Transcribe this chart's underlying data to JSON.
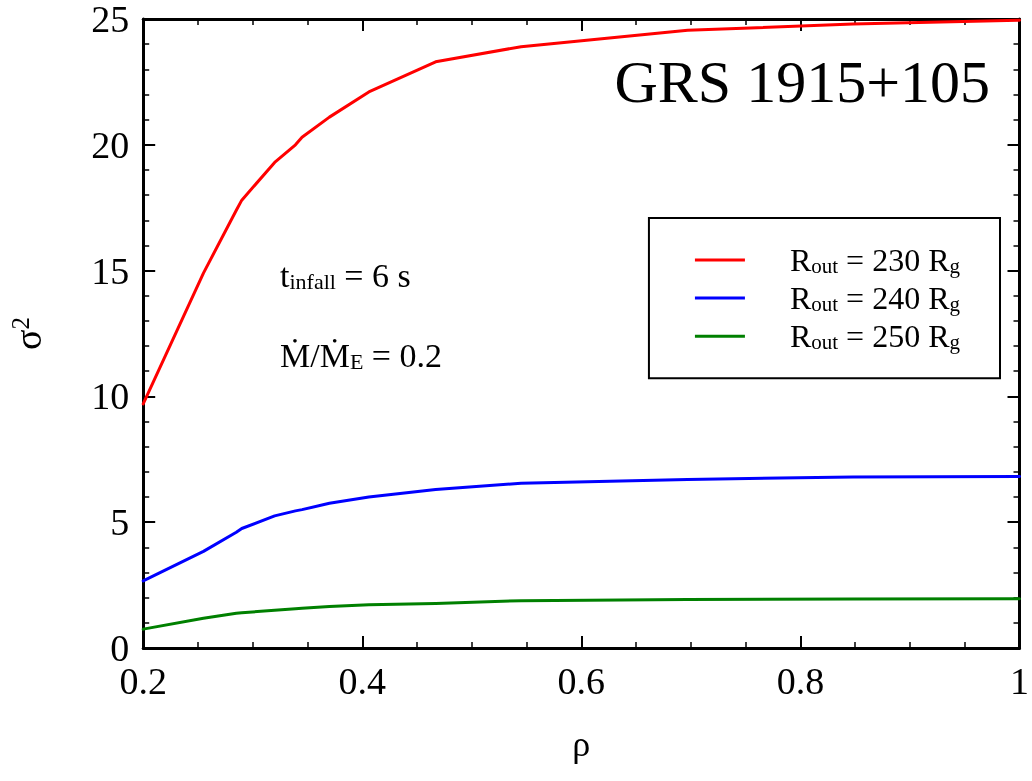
{
  "chart_data": {
    "type": "line",
    "title": "GRS 1915+105",
    "xlabel": "ρ",
    "ylabel": "σ$^{2}$",
    "annotations": [
      "t$_{infall}$ = 6 s",
      "Ṁ/Ṁ$_{E}$ = 0.2"
    ],
    "x": [
      0.2,
      0.255,
      0.285,
      0.29,
      0.32,
      0.339,
      0.345,
      0.37,
      0.406,
      0.467,
      0.545,
      0.697,
      0.848,
      1.0
    ],
    "series": [
      {
        "name": "R$_{out}$ = 230 R$_{g}$",
        "color": "#ff0000",
        "values": [
          9.7,
          14.9,
          17.4,
          17.8,
          19.3,
          20.0,
          20.3,
          21.1,
          22.1,
          23.3,
          23.9,
          24.55,
          24.8,
          24.95
        ]
      },
      {
        "name": "R$_{out}$ = 240 R$_{g}$",
        "color": "#0000ff",
        "values": [
          2.67,
          3.84,
          4.6,
          4.75,
          5.25,
          5.45,
          5.5,
          5.75,
          6.0,
          6.3,
          6.55,
          6.7,
          6.8,
          6.82
        ]
      },
      {
        "name": "R$_{out}$ = 250 R$_{g}$",
        "color": "#008000",
        "values": [
          0.75,
          1.18,
          1.38,
          1.4,
          1.5,
          1.56,
          1.58,
          1.65,
          1.72,
          1.77,
          1.88,
          1.93,
          1.95,
          1.96
        ]
      }
    ],
    "xlim": [
      0.2,
      1
    ],
    "xticks": [
      0.2,
      0.4,
      0.6,
      0.8,
      1
    ],
    "ylim": [
      0,
      25
    ],
    "yticks": [
      0,
      5,
      10,
      15,
      20,
      25
    ],
    "grid": false,
    "legend": "right",
    "marker": "none",
    "line_style": "solid"
  }
}
